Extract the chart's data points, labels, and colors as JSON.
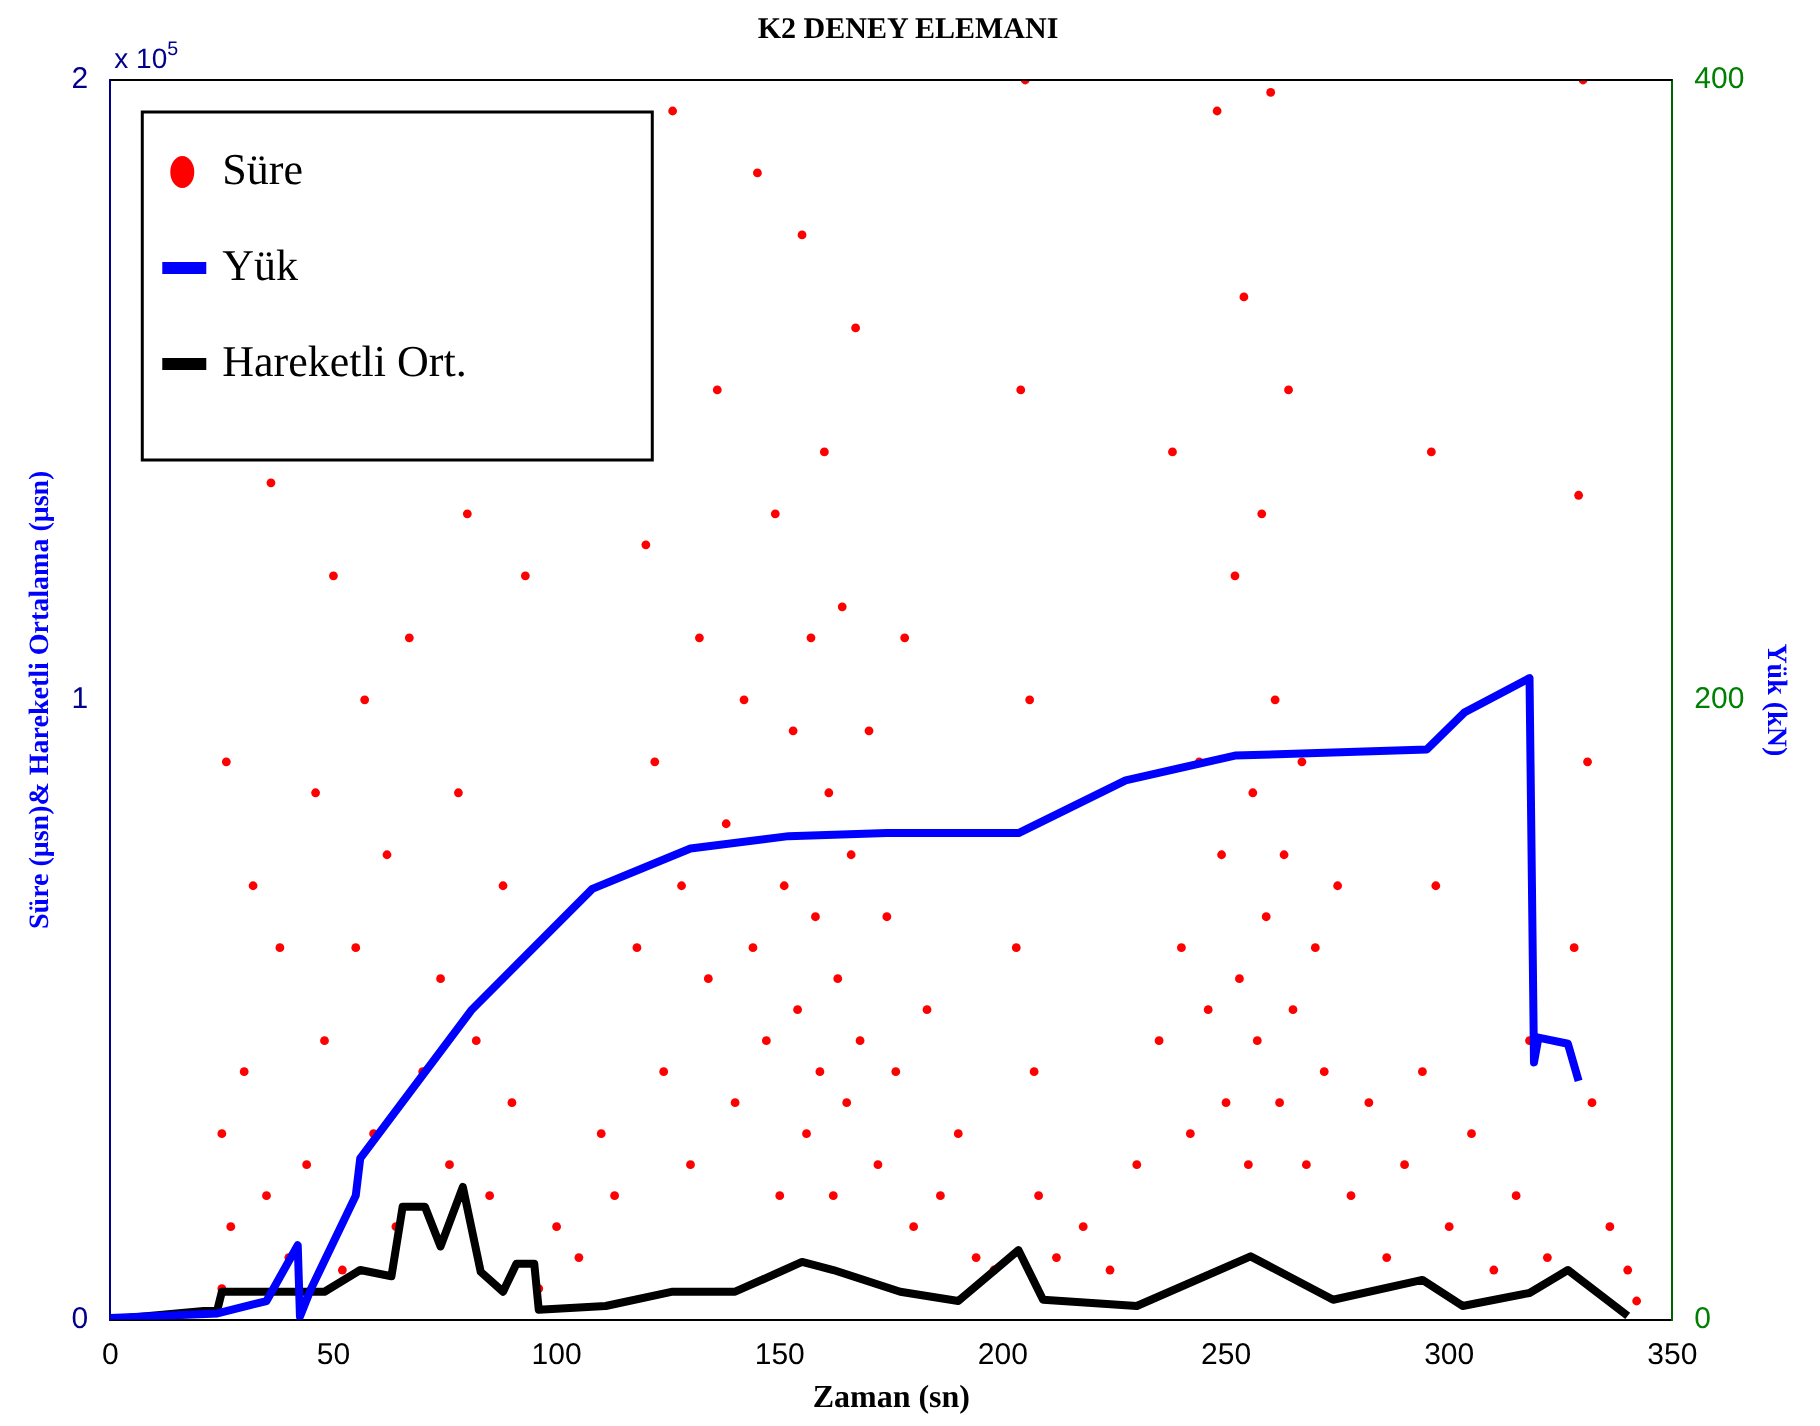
{
  "chart_data": {
    "type": "scatter",
    "title": "K2 DENEY ELEMANI",
    "xlabel": "Zaman (sn)",
    "ylabel": "Süre (μsn)& Hareketli Ortalama (μsn)",
    "y2label": "Yük (kN)",
    "xlim": [
      0,
      350
    ],
    "xticks": [
      0,
      50,
      100,
      150,
      200,
      250,
      300,
      350
    ],
    "ylim": [
      0,
      2
    ],
    "yticks": [
      0,
      1,
      2
    ],
    "y2lim": [
      0,
      400
    ],
    "y2ticks": [
      0,
      200,
      400
    ],
    "legend": "top left",
    "annotations": [
      "x 10$^{5}$"
    ],
    "series": [
      {
        "name": "Süre",
        "type": "scatter",
        "marker": "circle",
        "color": "#ff0000",
        "x": [
          25,
          25,
          26,
          27,
          30,
          32,
          35,
          36,
          38,
          40,
          44,
          46,
          48,
          50,
          52,
          55,
          57,
          59,
          62,
          64,
          67,
          70,
          74,
          76,
          78,
          80,
          82,
          85,
          88,
          90,
          93,
          96,
          100,
          105,
          110,
          113,
          118,
          120,
          122,
          124,
          126,
          128,
          130,
          132,
          134,
          136,
          138,
          140,
          142,
          144,
          145,
          147,
          149,
          150,
          151,
          153,
          154,
          155,
          156,
          157,
          158,
          159,
          160,
          161,
          162,
          163,
          164,
          165,
          166,
          167,
          168,
          170,
          172,
          174,
          176,
          178,
          180,
          183,
          186,
          190,
          194,
          198,
          203,
          204,
          205,
          206,
          207,
          208,
          212,
          218,
          224,
          230,
          235,
          238,
          240,
          242,
          244,
          246,
          248,
          249,
          250,
          252,
          253,
          254,
          255,
          256,
          257,
          258,
          259,
          260,
          261,
          262,
          263,
          264,
          265,
          267,
          268,
          270,
          272,
          275,
          278,
          282,
          286,
          290,
          294,
          296,
          297,
          300,
          305,
          310,
          315,
          318,
          322,
          328,
          329,
          330,
          331,
          332,
          336,
          340,
          342
        ],
        "values": [
          0.05,
          0.3,
          0.9,
          0.15,
          0.4,
          0.7,
          0.2,
          1.35,
          0.6,
          0.1,
          0.25,
          0.85,
          0.45,
          1.2,
          0.08,
          0.6,
          1.0,
          0.3,
          0.75,
          0.15,
          1.1,
          0.4,
          0.55,
          0.25,
          0.85,
          1.3,
          0.45,
          0.2,
          0.7,
          0.35,
          1.2,
          0.05,
          0.15,
          0.1,
          0.3,
          0.2,
          0.6,
          1.25,
          0.9,
          0.4,
          1.95,
          0.7,
          0.25,
          1.1,
          0.55,
          1.5,
          0.8,
          0.35,
          1.0,
          0.6,
          1.85,
          0.45,
          1.3,
          0.2,
          0.7,
          0.95,
          0.5,
          1.75,
          0.3,
          1.1,
          0.65,
          0.4,
          1.4,
          0.85,
          0.2,
          0.55,
          1.15,
          0.35,
          0.75,
          1.6,
          0.45,
          0.95,
          0.25,
          0.65,
          0.4,
          1.1,
          0.15,
          0.5,
          0.2,
          0.3,
          0.1,
          0.08,
          0.6,
          1.5,
          2.0,
          1.0,
          0.4,
          0.2,
          0.1,
          0.15,
          0.08,
          0.25,
          0.45,
          1.4,
          0.6,
          0.3,
          0.9,
          0.5,
          1.95,
          0.75,
          0.35,
          1.2,
          0.55,
          1.65,
          0.25,
          0.85,
          0.45,
          1.3,
          0.65,
          1.98,
          1.0,
          0.35,
          0.75,
          1.5,
          0.5,
          0.9,
          0.25,
          0.6,
          0.4,
          0.7,
          0.2,
          0.35,
          0.1,
          0.25,
          0.4,
          1.4,
          0.7,
          0.15,
          0.3,
          0.08,
          0.2,
          0.45,
          0.1,
          0.6,
          1.33,
          2.0,
          0.9,
          0.35,
          0.15,
          0.08,
          0.03
        ]
      },
      {
        "name": "Yük",
        "type": "line",
        "axis": "y2",
        "color": "#0000ff",
        "x": [
          0,
          24,
          35,
          42,
          42.5,
          45,
          55,
          56,
          81,
          108,
          130,
          152,
          174,
          203.5,
          227.5,
          252,
          295,
          303.5,
          318,
          319,
          320,
          326.6,
          329
        ],
        "values": [
          0.5,
          2,
          6,
          24,
          1,
          10,
          40,
          52,
          100,
          139,
          152,
          156,
          157,
          157,
          174,
          182,
          184,
          196,
          207,
          83,
          91,
          89,
          77
        ]
      },
      {
        "name": "Hareketli Ort.",
        "type": "line",
        "color": "#000000",
        "x": [
          0,
          24,
          25,
          48,
          56,
          63,
          65.5,
          70.5,
          74,
          79,
          83,
          88,
          91,
          95,
          96,
          111,
          126,
          140,
          155,
          162,
          177,
          190,
          203.5,
          209,
          230,
          255.5,
          274,
          294,
          303,
          318,
          326.6,
          340
        ],
        "values": [
          0,
          0.016,
          0.045,
          0.045,
          0.08,
          0.07,
          0.182,
          0.182,
          0.118,
          0.214,
          0.077,
          0.045,
          0.09,
          0.09,
          0.016,
          0.022,
          0.045,
          0.045,
          0.093,
          0.08,
          0.045,
          0.03,
          0.112,
          0.032,
          0.022,
          0.102,
          0.032,
          0.064,
          0.022,
          0.043,
          0.08,
          0.006
        ]
      }
    ]
  }
}
